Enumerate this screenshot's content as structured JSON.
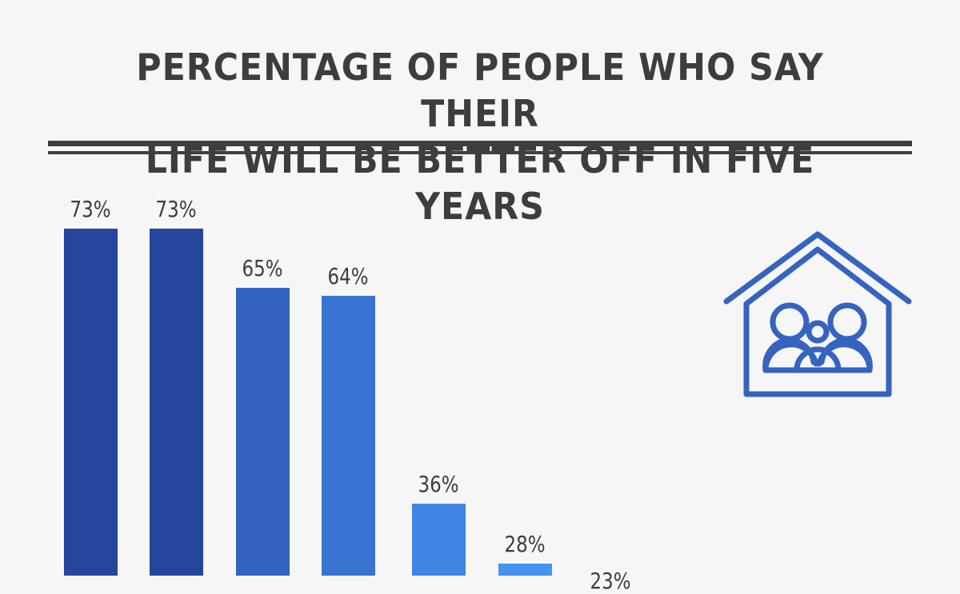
{
  "title": "PERCENTAGE OF PEOPLE WHO SAY THEIR LIFE WILL BE BETTER OFF IN FIVE YEARS",
  "title_lines": [
    "PERCENTAGE OF PEOPLE WHO SAY THEIR",
    "LIFE WILL BE BETTER OFF IN FIVE YEARS"
  ],
  "icon": "family-house-icon",
  "colors": {
    "text": "#3d3d3d",
    "background": "#f6f6f6",
    "icon": "#3563c0",
    "bars": [
      "#26459c",
      "#26459c",
      "#3363c0",
      "#3874d2",
      "#3f86e2",
      "#4592ef",
      "#4a9af5"
    ]
  },
  "chart_data": {
    "type": "bar",
    "title": "PERCENTAGE OF PEOPLE WHO SAY THEIR LIFE WILL BE BETTER OFF IN FIVE YEARS",
    "categories": [
      "",
      "",
      "",
      "",
      "",
      "",
      ""
    ],
    "values": [
      73,
      73,
      65,
      64,
      36,
      28,
      23
    ],
    "labels": [
      "73%",
      "73%",
      "65%",
      "64%",
      "36%",
      "28%",
      "23%"
    ],
    "xlabel": "",
    "ylabel": "",
    "ylim": [
      0,
      80
    ],
    "grid": false,
    "legend": null
  }
}
